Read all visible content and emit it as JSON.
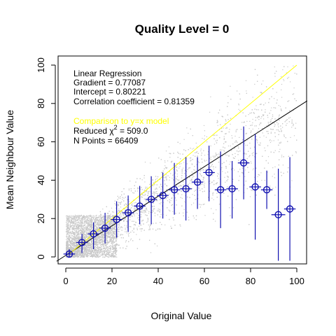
{
  "chart_data": {
    "type": "scatter",
    "title": "Quality Level =  0",
    "xlabel": "Original Value",
    "ylabel": "Mean Neighbour Value",
    "xlim": [
      0,
      100
    ],
    "ylim": [
      0,
      100
    ],
    "x_ticks": [
      0,
      20,
      40,
      60,
      80,
      100
    ],
    "y_ticks": [
      0,
      20,
      40,
      60,
      80,
      100
    ],
    "grid": false,
    "annotations": {
      "heading": "Linear Regression",
      "gradient": "Gradient = 0.77087",
      "intercept": "Intercept = 0.80221",
      "correlation": "Correlation coefficient = 0.81359",
      "comparison": "Comparison to y=x model",
      "chi_prefix": "Reduced χ",
      "chi_sup": "2",
      "chi_suffix": " =    509.0",
      "npoints": "N Points =  66409"
    },
    "colors": {
      "background_points": "#c8c8c8",
      "model_line": "#ffff00",
      "comparison_text": "#ffff00",
      "regression_line": "#000000",
      "binned_means": "#1010b0"
    },
    "lines": [
      {
        "kind": "regression",
        "slope": 0.77087,
        "intercept": 0.80221,
        "color": "#000000"
      },
      {
        "kind": "y=x",
        "slope": 1,
        "intercept": 0,
        "color": "#ffff00",
        "x_range": [
          2,
          100
        ]
      }
    ],
    "series": [
      {
        "kind": "binned-mean-with-error",
        "points": [
          {
            "x": 1.5,
            "y": 1.5,
            "lo": 0,
            "hi": 4
          },
          {
            "x": 7,
            "y": 7.5,
            "lo": 2,
            "hi": 12
          },
          {
            "x": 12,
            "y": 12,
            "lo": 4,
            "hi": 18
          },
          {
            "x": 17,
            "y": 15,
            "lo": 7,
            "hi": 23
          },
          {
            "x": 22,
            "y": 19.5,
            "lo": 10,
            "hi": 29
          },
          {
            "x": 27,
            "y": 23,
            "lo": 13,
            "hi": 32
          },
          {
            "x": 32,
            "y": 26.5,
            "lo": 17,
            "hi": 37
          },
          {
            "x": 37,
            "y": 30,
            "lo": 17,
            "hi": 42
          },
          {
            "x": 42,
            "y": 32,
            "lo": 20,
            "hi": 44
          },
          {
            "x": 47,
            "y": 35,
            "lo": 22,
            "hi": 49
          },
          {
            "x": 52,
            "y": 35.5,
            "lo": 19,
            "hi": 52
          },
          {
            "x": 57,
            "y": 39,
            "lo": 25,
            "hi": 52
          },
          {
            "x": 62,
            "y": 44,
            "lo": 29,
            "hi": 58
          },
          {
            "x": 67,
            "y": 35,
            "lo": 15,
            "hi": 55
          },
          {
            "x": 72,
            "y": 35.5,
            "lo": 20,
            "hi": 50
          },
          {
            "x": 77,
            "y": 49,
            "lo": 30,
            "hi": 68
          },
          {
            "x": 82,
            "y": 36.5,
            "lo": 9,
            "hi": 64
          },
          {
            "x": 87,
            "y": 35,
            "lo": 25,
            "hi": 45
          },
          {
            "x": 92,
            "y": 22,
            "lo": -2,
            "hi": 46,
            "xerr": 3
          },
          {
            "x": 97,
            "y": 25,
            "lo": -2,
            "hi": 52
          }
        ]
      }
    ]
  }
}
